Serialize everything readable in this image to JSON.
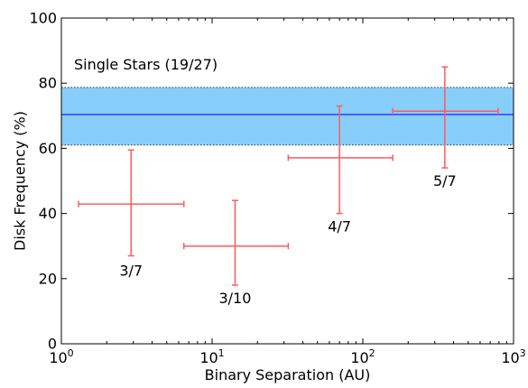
{
  "chart_data": {
    "type": "scatter",
    "xlabel": "Binary Separation (AU)",
    "ylabel": "Disk Frequency (%)",
    "x_scale": "log",
    "xlim": [
      1,
      1000
    ],
    "ylim": [
      0,
      100
    ],
    "x_ticks": [
      {
        "base": "10",
        "exp": "0",
        "value": 1
      },
      {
        "base": "10",
        "exp": "1",
        "value": 10
      },
      {
        "base": "10",
        "exp": "2",
        "value": 100
      },
      {
        "base": "10",
        "exp": "3",
        "value": 1000
      }
    ],
    "y_ticks": [
      "0",
      "20",
      "40",
      "60",
      "80",
      "100"
    ],
    "grid": false,
    "reference": {
      "label": "Single Stars (19/27)",
      "value": 70.4,
      "band": [
        61,
        78.7
      ],
      "line_color": "#3a3aff",
      "band_color": "#87cefa"
    },
    "series": [
      {
        "color": "#ff5a5a",
        "points": [
          {
            "x": 2.9,
            "y": 42.9,
            "xerr": [
              1.3,
              6.5
            ],
            "yerr": [
              27,
              59.5
            ],
            "label": "3/7"
          },
          {
            "x": 14.2,
            "y": 30,
            "xerr": [
              6.5,
              32
            ],
            "yerr": [
              18,
              44
            ],
            "label": "3/10"
          },
          {
            "x": 70,
            "y": 57.1,
            "xerr": [
              32,
              158
            ],
            "yerr": [
              40,
              73
            ],
            "label": "4/7"
          },
          {
            "x": 350,
            "y": 71.4,
            "xerr": [
              158,
              790
            ],
            "yerr": [
              54,
              85
            ],
            "label": "5/7"
          }
        ]
      }
    ]
  }
}
